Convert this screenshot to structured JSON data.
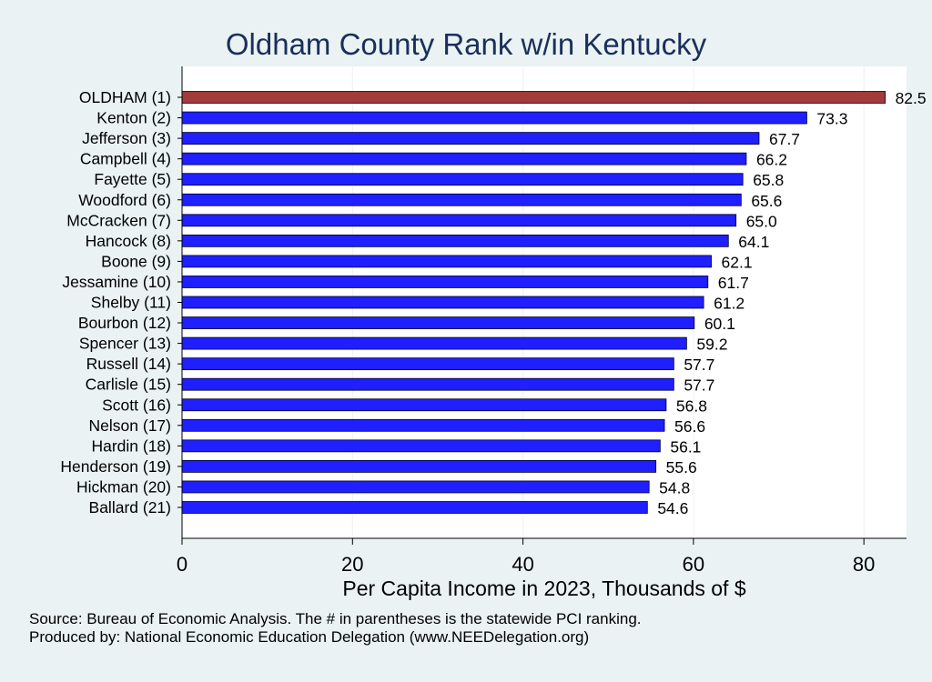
{
  "chart_data": {
    "type": "bar",
    "orientation": "horizontal",
    "title": "Oldham County Rank w/in Kentucky",
    "xlabel": "Per Capita Income in 2023, Thousands of $",
    "ylabel": "",
    "xlim": [
      0,
      85
    ],
    "xticks": [
      0,
      20,
      40,
      60,
      80
    ],
    "grid": "vertical",
    "categories": [
      "OLDHAM (1)",
      "Kenton (2)",
      "Jefferson (3)",
      "Campbell (4)",
      "Fayette (5)",
      "Woodford (6)",
      "McCracken (7)",
      "Hancock (8)",
      "Boone (9)",
      "Jessamine (10)",
      "Shelby (11)",
      "Bourbon (12)",
      "Spencer (13)",
      "Russell (14)",
      "Carlisle (15)",
      "Scott (16)",
      "Nelson (17)",
      "Hardin (18)",
      "Henderson (19)",
      "Hickman (20)",
      "Ballard (21)"
    ],
    "values": [
      82.5,
      73.3,
      67.7,
      66.2,
      65.8,
      65.6,
      65.0,
      64.1,
      62.1,
      61.7,
      61.2,
      60.1,
      59.2,
      57.7,
      57.7,
      56.8,
      56.6,
      56.1,
      55.6,
      54.8,
      54.6
    ],
    "value_labels": [
      "82.5",
      "73.3",
      "67.7",
      "66.2",
      "65.8",
      "65.6",
      "65.0",
      "64.1",
      "62.1",
      "61.7",
      "61.2",
      "60.1",
      "59.2",
      "57.7",
      "57.7",
      "56.8",
      "56.6",
      "56.1",
      "55.6",
      "54.8",
      "54.6"
    ],
    "highlight_index": 0,
    "colors": {
      "highlight_fill": "#a33a3c",
      "bar_fill": "#1f1fff",
      "bar_stroke": "#000033",
      "plot_background": "#ffffff",
      "page_background": "#eaf2f3",
      "title_color": "#1a2f5a",
      "grid_color": "#eaf2f3"
    }
  },
  "footer": {
    "source": "Source: Bureau of Economic Analysis. The # in parentheses is the statewide PCI ranking.",
    "produced_by": "Produced by: National Economic Education Delegation (www.NEEDelegation.org)"
  }
}
